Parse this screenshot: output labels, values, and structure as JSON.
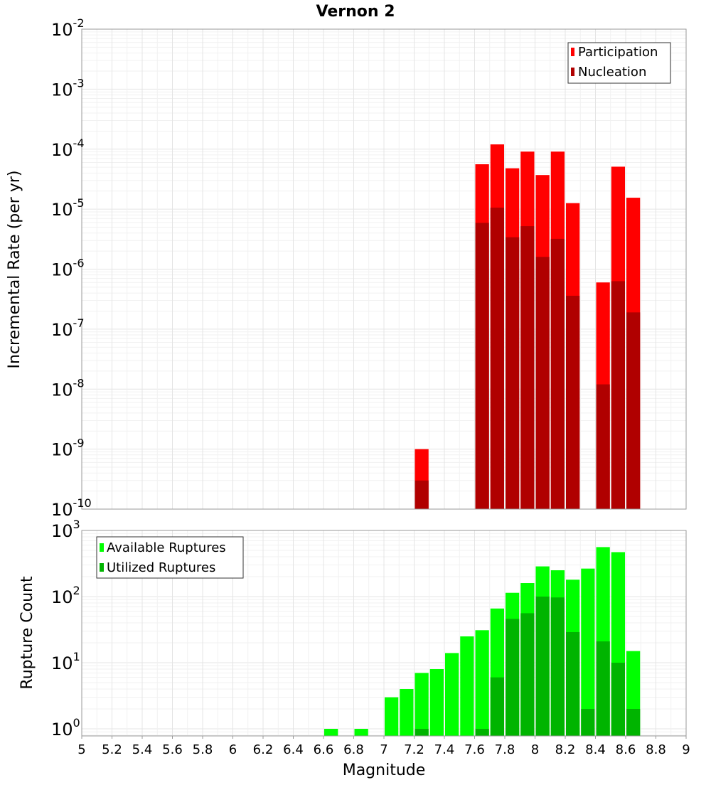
{
  "chart_data": [
    {
      "type": "bar",
      "panel": "top",
      "title": "Vernon 2",
      "ylabel": "Incremental Rate (per yr)",
      "yscale": "log",
      "ylim_exp": [
        -10,
        -2
      ],
      "y_ticks": [
        {
          "base": "10",
          "exp": "-2"
        },
        {
          "base": "10",
          "exp": "-3"
        },
        {
          "base": "10",
          "exp": "-4"
        },
        {
          "base": "10",
          "exp": "-5"
        },
        {
          "base": "10",
          "exp": "-6"
        },
        {
          "base": "10",
          "exp": "-7"
        },
        {
          "base": "10",
          "exp": "-8"
        },
        {
          "base": "10",
          "exp": "-9"
        },
        {
          "base": "10",
          "exp": "-10"
        }
      ],
      "legend": {
        "position": "top-right",
        "items": [
          {
            "label": "Participation",
            "color": "#ff0000"
          },
          {
            "label": "Nucleation",
            "color": "#b00000"
          }
        ]
      },
      "x": [
        7.25,
        7.65,
        7.75,
        7.85,
        7.95,
        8.05,
        8.15,
        8.25,
        8.45,
        8.55,
        8.65
      ],
      "series": [
        {
          "name": "Participation",
          "color": "#ff0000",
          "values": [
            1e-09,
            5.6e-05,
            0.00012,
            4.8e-05,
            9.1e-05,
            3.7e-05,
            9.1e-05,
            1.26e-05,
            6e-07,
            5.1e-05,
            1.55e-05
          ]
        },
        {
          "name": "Nucleation",
          "color": "#b00000",
          "values": [
            3e-10,
            5.9e-06,
            1.06e-05,
            3.4e-06,
            5.2e-06,
            1.6e-06,
            3.2e-06,
            3.6e-07,
            1.2e-08,
            6.3e-07,
            1.9e-07
          ]
        }
      ]
    },
    {
      "type": "bar",
      "panel": "bottom",
      "ylabel": "Rupture Count",
      "xlabel": "Magnitude",
      "yscale": "log",
      "y_ticks": [
        {
          "base": "10",
          "exp": "3"
        },
        {
          "base": "10",
          "exp": "2"
        },
        {
          "base": "10",
          "exp": "1"
        },
        {
          "base": "10",
          "exp": "0"
        }
      ],
      "x_ticks": [
        "5",
        "5.2",
        "5.4",
        "5.6",
        "5.8",
        "6",
        "6.2",
        "6.4",
        "6.6",
        "6.8",
        "7",
        "7.2",
        "7.4",
        "7.6",
        "7.8",
        "8",
        "8.2",
        "8.4",
        "8.6",
        "8.8",
        "9"
      ],
      "xlim": [
        5,
        9
      ],
      "legend": {
        "position": "top-left",
        "items": [
          {
            "label": "Available Ruptures",
            "color": "#00ff00"
          },
          {
            "label": "Utilized Ruptures",
            "color": "#00b400"
          }
        ]
      },
      "x": [
        6.65,
        6.85,
        7.05,
        7.15,
        7.25,
        7.35,
        7.45,
        7.55,
        7.65,
        7.75,
        7.85,
        7.95,
        8.05,
        8.15,
        8.25,
        8.35,
        8.45,
        8.55,
        8.65
      ],
      "series": [
        {
          "name": "Available Ruptures",
          "color": "#00ff00",
          "values": [
            1,
            1,
            3,
            4,
            7,
            8,
            14,
            25,
            31,
            66,
            114,
            160,
            286,
            250,
            180,
            265,
            560,
            470,
            15
          ]
        },
        {
          "name": "Utilized Ruptures",
          "color": "#00b400",
          "values": [
            0,
            0,
            0,
            0,
            1,
            0,
            0,
            0,
            1,
            6,
            46,
            56,
            100,
            97,
            29,
            2,
            21,
            10,
            2
          ]
        }
      ]
    }
  ]
}
